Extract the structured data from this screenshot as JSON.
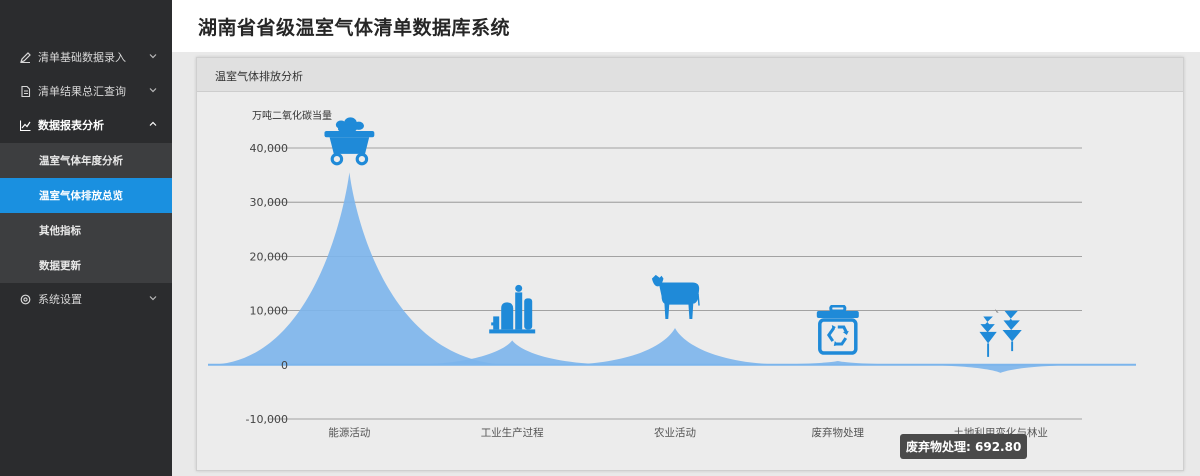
{
  "app": {
    "title": "湖南省省级温室气体清单数据库系统"
  },
  "sidebar": {
    "items": [
      {
        "label": "清单基础数据录入",
        "icon": "pencil-icon"
      },
      {
        "label": "清单结果总汇查询",
        "icon": "document-icon"
      },
      {
        "label": "数据报表分析",
        "icon": "line-chart-icon"
      },
      {
        "label": "系统设置",
        "icon": "gear-icon"
      }
    ],
    "subitems": [
      {
        "label": "温室气体年度分析"
      },
      {
        "label": "温室气体排放总览"
      },
      {
        "label": "其他指标"
      },
      {
        "label": "数据更新"
      }
    ]
  },
  "panel": {
    "title": "温室气体排放分析"
  },
  "colors": {
    "accent": "#1a90e0",
    "area": "#7cb5ec",
    "icon": "#1f8ad8",
    "sidebar": "#2b2c2e"
  },
  "chart_data": {
    "type": "area",
    "ylabel": "万吨二氧化碳当量",
    "categories": [
      "能源活动",
      "工业生产过程",
      "农业活动",
      "废弃物处理",
      "土地利用变化与林业"
    ],
    "values": [
      35500,
      4500,
      6800,
      692.8,
      -1500
    ],
    "ylim": [
      -10000,
      40000
    ],
    "yticks": [
      -10000,
      0,
      10000,
      20000,
      30000,
      40000
    ],
    "ytick_labels": [
      "-10,000",
      "0",
      "10,000",
      "20,000",
      "30,000",
      "40,000"
    ],
    "category_icons": [
      "coal-cart-icon",
      "factory-icon",
      "cow-icon",
      "recycle-bin-icon",
      "tree-arrows-icon"
    ],
    "grid": true,
    "tooltip": {
      "label": "废弃物处理",
      "value": "692.80"
    }
  }
}
